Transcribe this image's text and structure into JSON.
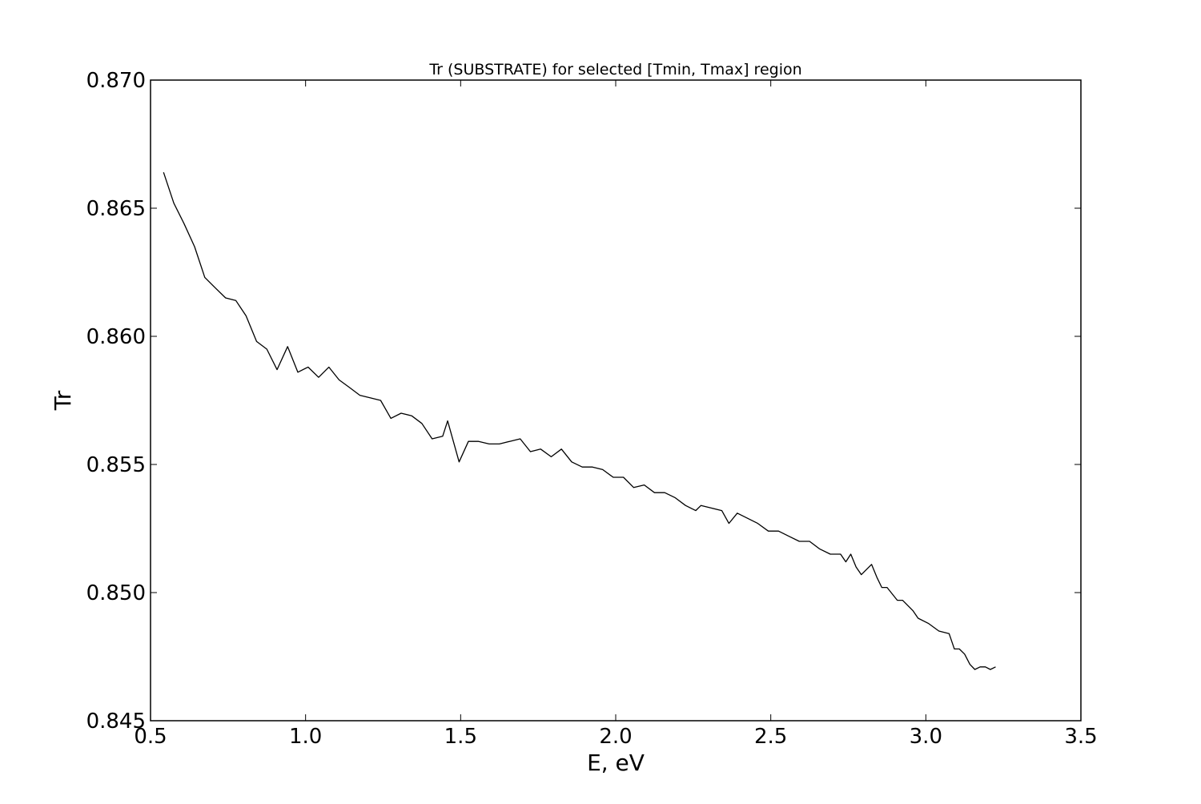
{
  "chart_data": {
    "type": "line",
    "title": "Tr (SUBSTRATE) for selected [Tmin, Tmax] region",
    "xlabel": "E, eV",
    "ylabel": "Tr",
    "xlim": [
      0.5,
      3.5
    ],
    "ylim": [
      0.845,
      0.87
    ],
    "xticks": [
      "0.5",
      "1.0",
      "1.5",
      "2.0",
      "2.5",
      "3.0",
      "3.5"
    ],
    "yticks": [
      "0.870",
      "0.865",
      "0.860",
      "0.855",
      "0.850",
      "0.845"
    ],
    "grid": false,
    "line_color": "#000000",
    "series": [
      {
        "x": [
          0.542,
          0.575,
          0.608,
          0.642,
          0.675,
          0.708,
          0.742,
          0.775,
          0.808,
          0.842,
          0.875,
          0.908,
          0.942,
          0.975,
          1.008,
          1.042,
          1.075,
          1.108,
          1.142,
          1.175,
          1.208,
          1.242,
          1.275,
          1.308,
          1.342,
          1.375,
          1.408,
          1.442,
          1.458,
          1.495,
          1.525,
          1.558,
          1.592,
          1.625,
          1.658,
          1.692,
          1.725,
          1.758,
          1.792,
          1.825,
          1.858,
          1.892,
          1.925,
          1.958,
          1.992,
          2.025,
          2.058,
          2.092,
          2.125,
          2.158,
          2.192,
          2.225,
          2.258,
          2.275,
          2.308,
          2.342,
          2.365,
          2.392,
          2.425,
          2.458,
          2.492,
          2.525,
          2.558,
          2.592,
          2.625,
          2.658,
          2.692,
          2.725,
          2.742,
          2.758,
          2.775,
          2.792,
          2.825,
          2.842,
          2.858,
          2.875,
          2.908,
          2.925,
          2.958,
          2.975,
          3.008,
          3.042,
          3.075,
          3.092,
          3.108,
          3.125,
          3.142,
          3.158,
          3.175,
          3.192,
          3.208,
          3.225
        ],
        "y": [
          0.8664,
          0.8652,
          0.8644,
          0.8635,
          0.8623,
          0.8619,
          0.8615,
          0.8614,
          0.8608,
          0.8598,
          0.8595,
          0.8587,
          0.8596,
          0.8586,
          0.8588,
          0.8584,
          0.8588,
          0.8583,
          0.858,
          0.8577,
          0.8576,
          0.8575,
          0.8568,
          0.857,
          0.8569,
          0.8566,
          0.856,
          0.8561,
          0.8567,
          0.8551,
          0.8559,
          0.8559,
          0.8558,
          0.8558,
          0.8559,
          0.856,
          0.8555,
          0.8556,
          0.8553,
          0.8556,
          0.8551,
          0.8549,
          0.8549,
          0.8548,
          0.8545,
          0.8545,
          0.8541,
          0.8542,
          0.8539,
          0.8539,
          0.8537,
          0.8534,
          0.8532,
          0.8534,
          0.8533,
          0.8532,
          0.8527,
          0.8531,
          0.8529,
          0.8527,
          0.8524,
          0.8524,
          0.8522,
          0.852,
          0.852,
          0.8517,
          0.8515,
          0.8515,
          0.8512,
          0.8515,
          0.851,
          0.8507,
          0.8511,
          0.8506,
          0.8502,
          0.8502,
          0.8497,
          0.8497,
          0.8493,
          0.849,
          0.8488,
          0.8485,
          0.8484,
          0.8478,
          0.8478,
          0.8476,
          0.8472,
          0.847,
          0.8471,
          0.8471,
          0.847,
          0.8471
        ]
      }
    ]
  }
}
